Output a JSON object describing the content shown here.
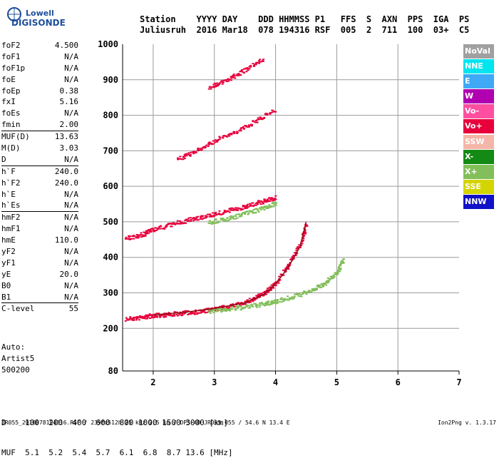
{
  "logo": {
    "line1": "Lowell",
    "line2": "DIGISONDE"
  },
  "header": {
    "line1": "Station    YYYY DAY    DDD HHMMSS P1   FFS  S  AXN  PPS  IGA  PS",
    "line2": "Juliusruh  2016 Mar18  078 194316 RSF  005  2  711  100  03+  C5"
  },
  "params": {
    "group1": [
      {
        "name": "foF2",
        "value": "4.500"
      },
      {
        "name": "foF1",
        "value": "N/A"
      },
      {
        "name": "foF1p",
        "value": "N/A"
      },
      {
        "name": "foE",
        "value": "N/A"
      },
      {
        "name": "foEp",
        "value": "0.38"
      },
      {
        "name": "fxI",
        "value": "5.16"
      },
      {
        "name": "foEs",
        "value": "N/A"
      },
      {
        "name": "fmin",
        "value": "2.00"
      }
    ],
    "group2": [
      {
        "name": "MUF(D)",
        "value": "13.63"
      },
      {
        "name": "M(D)",
        "value": "3.03"
      },
      {
        "name": "D",
        "value": "N/A"
      }
    ],
    "group3": [
      {
        "name": "h`F",
        "value": "240.0"
      },
      {
        "name": "h`F2",
        "value": "240.0"
      },
      {
        "name": "h`E",
        "value": "N/A"
      },
      {
        "name": "h`Es",
        "value": "N/A"
      }
    ],
    "group4": [
      {
        "name": "hmF2",
        "value": "N/A"
      },
      {
        "name": "hmF1",
        "value": "N/A"
      },
      {
        "name": "hmE",
        "value": "110.0"
      },
      {
        "name": "yF2",
        "value": "N/A"
      },
      {
        "name": "yF1",
        "value": "N/A"
      },
      {
        "name": "yE",
        "value": "20.0"
      },
      {
        "name": "B0",
        "value": "N/A"
      },
      {
        "name": "B1",
        "value": "N/A"
      }
    ],
    "group5": [
      {
        "name": "C-level",
        "value": "55"
      }
    ]
  },
  "auto": {
    "line1": "Auto:",
    "line2": "Artist5",
    "line3": "500200"
  },
  "legend": [
    {
      "label": "NoVal",
      "color": "#a0a0a0"
    },
    {
      "label": "NNE",
      "color": "#00e5ee"
    },
    {
      "label": "E",
      "color": "#3fa9f5"
    },
    {
      "label": "W",
      "color": "#b000b0"
    },
    {
      "label": "Vo-",
      "color": "#ff4fa0"
    },
    {
      "label": "Vo+",
      "color": "#e8003c"
    },
    {
      "label": "SSW",
      "color": "#f4b6a8"
    },
    {
      "label": "X-",
      "color": "#138a13"
    },
    {
      "label": "X+",
      "color": "#82bf5a"
    },
    {
      "label": "SSE",
      "color": "#d4d400"
    },
    {
      "label": "NNW",
      "color": "#1010c8"
    }
  ],
  "dtable": {
    "row1": "D    100  200  400  600  800 1000 1500 3000 [km]",
    "row2": "MUF  5.1  5.2  5.4  5.7  6.1  6.8  8.7 13.6 [MHz]"
  },
  "footer": "JR055_2016078194316.RSF / 239fx512h 25 kHz 2.5 km / DPS-4D JR055 055 / 54.6 N 13.4 E",
  "version": "Ion2Png v. 1.3.17",
  "chart_data": {
    "type": "scatter",
    "xlim": [
      1.5,
      7.0
    ],
    "ylim": [
      80,
      1000
    ],
    "xticks": [
      2,
      3,
      4,
      5,
      6,
      7
    ],
    "yticks": [
      80,
      200,
      300,
      400,
      500,
      600,
      700,
      800,
      900,
      1000
    ],
    "grid": true,
    "traces": [
      {
        "name": "F2 O-trace first hop",
        "color": "#e8003c",
        "x": [
          1.55,
          1.8,
          2.0,
          2.2,
          2.5,
          2.8,
          3.0,
          3.3,
          3.6,
          3.8,
          4.0,
          4.2,
          4.4,
          4.5
        ],
        "y": [
          228,
          232,
          238,
          240,
          245,
          250,
          256,
          265,
          282,
          300,
          330,
          380,
          440,
          500
        ]
      },
      {
        "name": "F2 X-trace first hop",
        "color": "#82bf5a",
        "x": [
          2.9,
          3.2,
          3.5,
          3.8,
          4.0,
          4.3,
          4.6,
          4.8,
          5.0,
          5.1
        ],
        "y": [
          250,
          255,
          262,
          270,
          278,
          292,
          310,
          330,
          360,
          400
        ]
      },
      {
        "name": "second hop O",
        "color": "#e8003c",
        "x": [
          1.55,
          1.8,
          2.0,
          2.3,
          2.6,
          2.9,
          3.2,
          3.5,
          3.8,
          4.0
        ],
        "y": [
          455,
          465,
          480,
          495,
          508,
          520,
          532,
          545,
          560,
          570
        ]
      },
      {
        "name": "second hop X",
        "color": "#82bf5a",
        "x": [
          2.9,
          3.2,
          3.5,
          3.8,
          4.0
        ],
        "y": [
          500,
          510,
          525,
          540,
          555
        ]
      },
      {
        "name": "third hop O",
        "color": "#e8003c",
        "x": [
          2.4,
          2.7,
          3.0,
          3.4,
          3.7,
          4.0
        ],
        "y": [
          680,
          700,
          730,
          760,
          790,
          820
        ]
      },
      {
        "name": "fourth hop O",
        "color": "#e8003c",
        "x": [
          2.9,
          3.2,
          3.5,
          3.8
        ],
        "y": [
          880,
          900,
          930,
          960
        ]
      }
    ],
    "profile": {
      "color": "#8a1010",
      "x": [
        2.0,
        2.5,
        3.0,
        3.5,
        3.8,
        4.0,
        4.2,
        4.4,
        4.5
      ],
      "y": [
        238,
        245,
        256,
        272,
        295,
        325,
        370,
        430,
        500
      ]
    }
  }
}
